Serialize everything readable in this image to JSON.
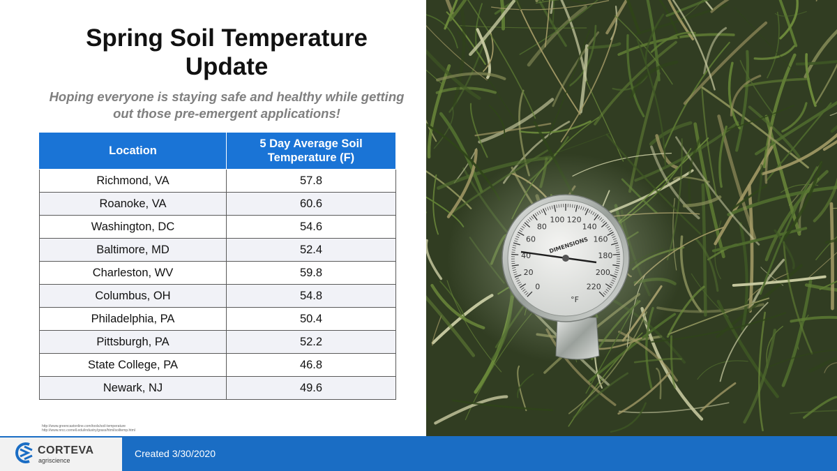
{
  "title": "Spring Soil Temperature Update",
  "subtitle": "Hoping everyone is staying safe and healthy while getting out those pre-emergent applications!",
  "table": {
    "headers": [
      "Location",
      "5 Day Average Soil Temperature (F)"
    ],
    "rows": [
      [
        "Richmond, VA",
        "57.8"
      ],
      [
        "Roanoke, VA",
        "60.6"
      ],
      [
        "Washington, DC",
        "54.6"
      ],
      [
        "Baltimore, MD",
        "52.4"
      ],
      [
        "Charleston, WV",
        "59.8"
      ],
      [
        "Columbus, OH",
        "54.8"
      ],
      [
        "Philadelphia, PA",
        "50.4"
      ],
      [
        "Pittsburgh, PA",
        "52.2"
      ],
      [
        "State College, PA",
        "46.8"
      ],
      [
        "Newark, NJ",
        "49.6"
      ]
    ]
  },
  "sources": [
    "http://www.greencastonline.com/tools/soil-temperature",
    "http://www.nrcc.cornell.edu/industry/grass/html/soiltemp.html"
  ],
  "footer": {
    "logo_name": "CORTEVA",
    "logo_sub": "agriscience",
    "created": "Created 3/30/2020"
  },
  "thermometer": {
    "brand": "DIMENSIONS",
    "unit": "°F",
    "scale": [
      "0",
      "20",
      "40",
      "60",
      "80",
      "100",
      "120",
      "140",
      "160",
      "180",
      "200",
      "220"
    ]
  },
  "colors": {
    "header_blue": "#1a74d6",
    "footer_blue": "#1a6dc4",
    "subtitle_gray": "#7f7f7f"
  }
}
